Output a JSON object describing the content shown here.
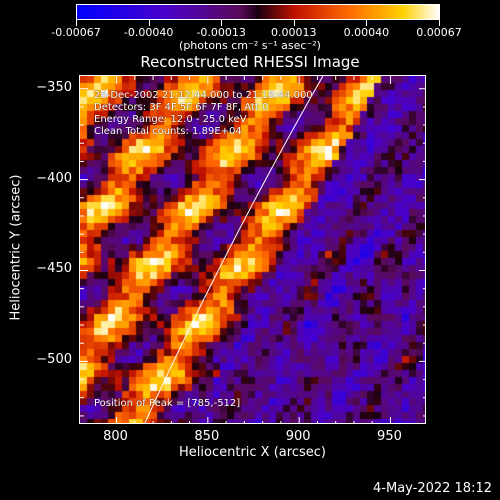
{
  "colorbar": {
    "tick_labels": [
      "-0.00067",
      "-0.00040",
      "-0.00013",
      "0.00013",
      "0.00040",
      "0.00067"
    ],
    "units": "(photons cm⁻² s⁻¹ asec⁻²)"
  },
  "title": "Reconstructed RHESSI Image",
  "info": {
    "time": "28-Dec-2002 21:12:44.000 to 21:18:44.000",
    "detectors": "Detectors: 3F 4F 5F 6F 7F 8F, Att 0",
    "energy": "Energy Range: 12.0 - 25.0 keV",
    "clean": "Clean    Total counts: 1.89E+04",
    "peak": "Position of Peak = [785,-512]"
  },
  "axes": {
    "xlabel": "Heliocentric X (arcsec)",
    "ylabel": "Heliocentric Y (arcsec)",
    "x_ticks": [
      "800",
      "850",
      "900",
      "950"
    ],
    "y_ticks": [
      "-350",
      "-400",
      "-450",
      "-500"
    ],
    "xlim": [
      780,
      970
    ],
    "ylim": [
      -535,
      -343
    ]
  },
  "limb_curve_x_at_ylim": [
    815,
    913
  ],
  "datestamp": "4-May-2022 18:12",
  "colors": {
    "background": "#000000",
    "limb": "#ffffff"
  }
}
